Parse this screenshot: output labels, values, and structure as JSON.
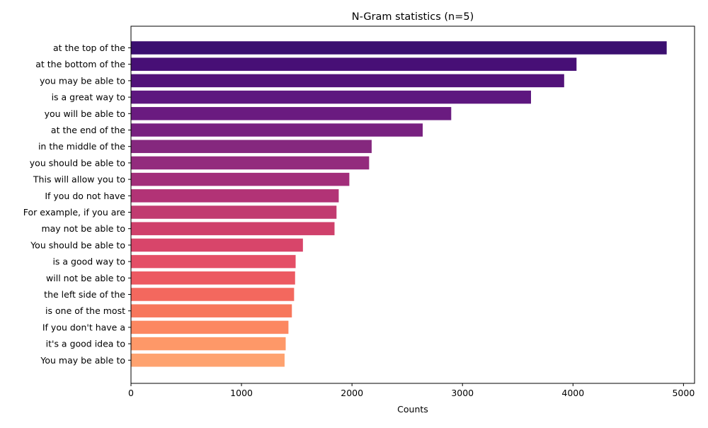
{
  "chart_data": {
    "type": "bar",
    "orientation": "horizontal",
    "title": "N-Gram statistics (n=5)",
    "xlabel": "Counts",
    "ylabel": "",
    "xlim": [
      0,
      5100
    ],
    "xticks": [
      "0",
      "1000",
      "2000",
      "3000",
      "4000",
      "5000"
    ],
    "grid": false,
    "legend": "none",
    "categories": [
      "at the top of the",
      "at the bottom of the",
      "you may be able to",
      "is a great way to",
      "you will be able to",
      "at the end of the",
      "in the middle of the",
      "you should be able to",
      "This will allow you to",
      "If you do not have",
      "For example, if you are",
      "may not be able to",
      "You should be able to",
      "is a good way to",
      "will not be able to",
      "the left side of the",
      "is one of the most",
      "If you don't have a",
      "it's a good idea to",
      "You may be able to"
    ],
    "values": [
      4848,
      4032,
      3920,
      3620,
      2898,
      2640,
      2178,
      2155,
      1976,
      1880,
      1860,
      1842,
      1556,
      1490,
      1485,
      1476,
      1456,
      1425,
      1400,
      1390
    ],
    "colors": [
      "#3b0f70",
      "#470f76",
      "#521379",
      "#5d177f",
      "#6a1b80",
      "#782180",
      "#85287e",
      "#932b7d",
      "#a22e7a",
      "#b23376",
      "#c13b70",
      "#cf406b",
      "#d8456a",
      "#e44e66",
      "#ec5a62",
      "#f3685e",
      "#f7775c",
      "#fc8761",
      "#fe9868",
      "#fea26f"
    ]
  }
}
